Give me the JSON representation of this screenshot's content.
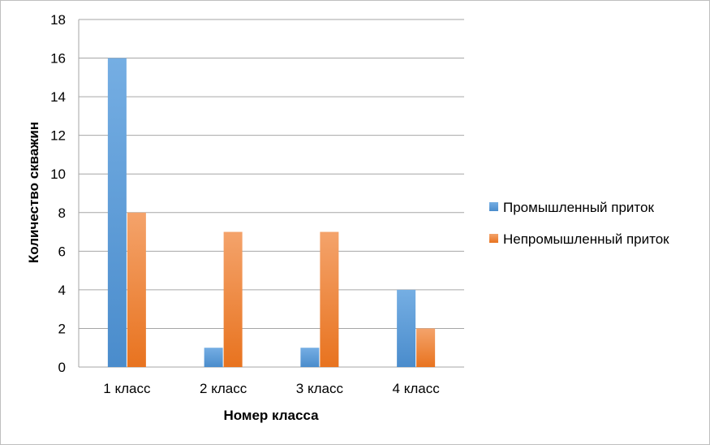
{
  "chart_data": {
    "type": "bar",
    "categories": [
      "1 класс",
      "2 класс",
      "3 класс",
      "4 класс"
    ],
    "series": [
      {
        "name": "Промышленный приток",
        "values": [
          16,
          1,
          1,
          4
        ],
        "color": "#5b9bd5"
      },
      {
        "name": "Непромышленный приток",
        "values": [
          8,
          7,
          7,
          2
        ],
        "color": "#ed7d31"
      }
    ],
    "title": "",
    "xlabel": "Номер класса",
    "ylabel": "Количество скважин",
    "ylim": [
      0,
      18
    ],
    "yticks": [
      0,
      2,
      4,
      6,
      8,
      10,
      12,
      14,
      16,
      18
    ],
    "grid": true,
    "legend_position": "right"
  }
}
